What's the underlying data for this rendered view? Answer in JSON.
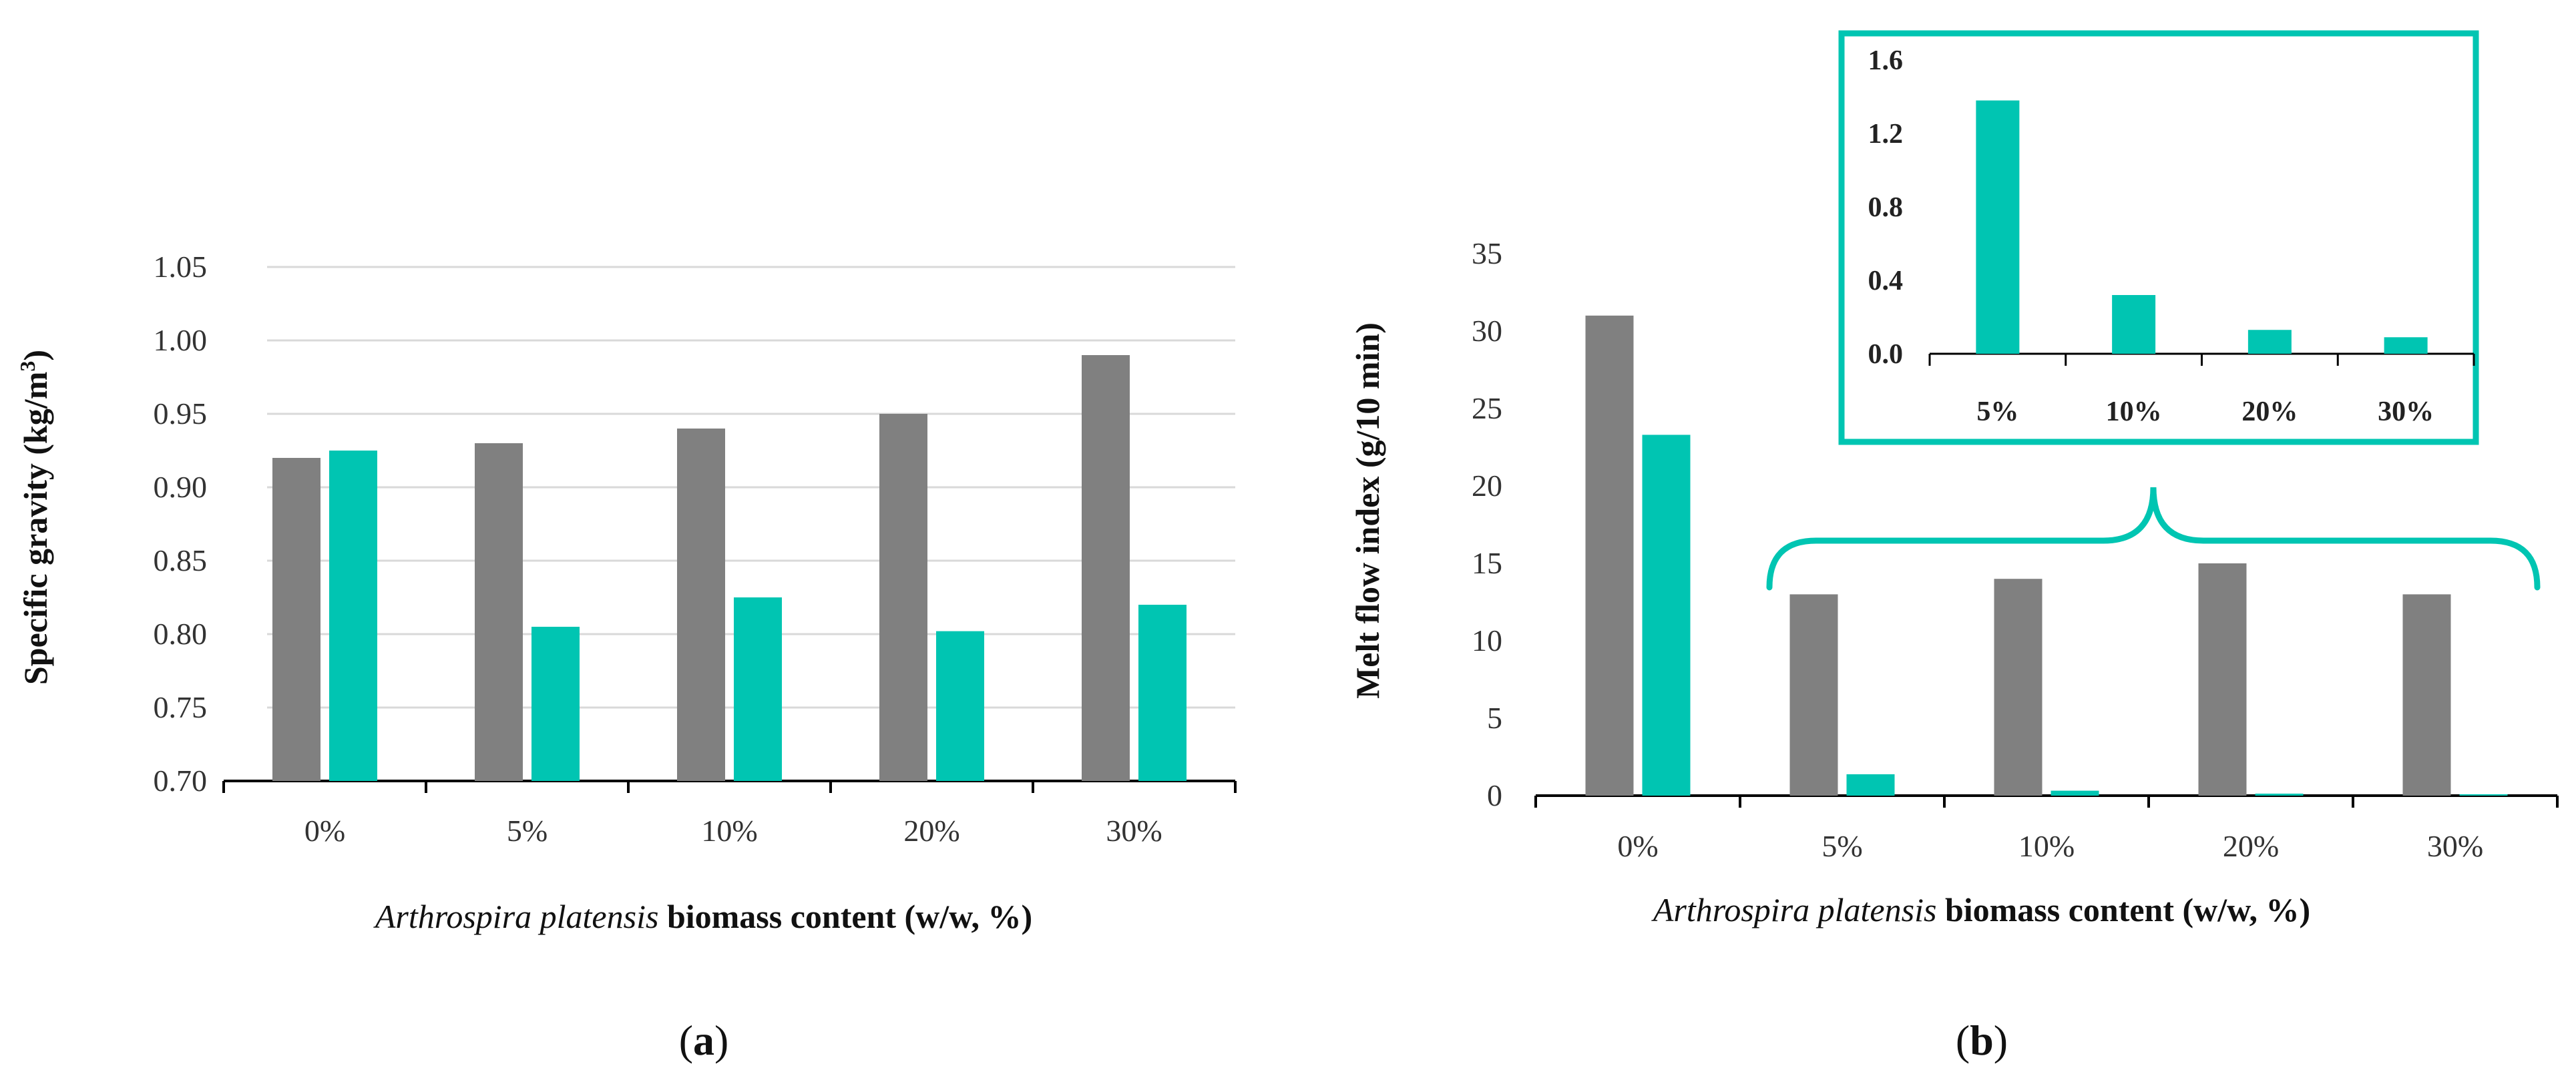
{
  "colors": {
    "series_gray": "#808080",
    "series_teal": "#00c5b2",
    "grid": "#d9d9d9",
    "axis": "#000000"
  },
  "panels": {
    "a": {
      "label_prefix": "(",
      "label_letter": "a",
      "label_suffix": ")"
    },
    "b": {
      "label_prefix": "(",
      "label_letter": "b",
      "label_suffix": ")"
    }
  },
  "chart_data": [
    {
      "id": "a",
      "type": "bar",
      "title": "",
      "categories": [
        "0%",
        "5%",
        "10%",
        "20%",
        "30%"
      ],
      "series": [
        {
          "name": "gray",
          "values": [
            0.92,
            0.93,
            0.94,
            0.95,
            0.99
          ]
        },
        {
          "name": "teal",
          "values": [
            0.925,
            0.805,
            0.825,
            0.802,
            0.82
          ]
        }
      ],
      "ylim": [
        0.7,
        1.05
      ],
      "yticks": [
        "0.70",
        "0.75",
        "0.80",
        "0.85",
        "0.90",
        "0.95",
        "1.00",
        "1.05"
      ],
      "ylabel_main": "Specific gravity (kg/m",
      "ylabel_sup": "3",
      "ylabel_end": ")",
      "xlabel_italic": "Arthrospira platensis",
      "xlabel_rest": " biomass content (w/w, %)",
      "grid": true
    },
    {
      "id": "b",
      "type": "bar",
      "title": "",
      "categories": [
        "0%",
        "5%",
        "10%",
        "20%",
        "30%"
      ],
      "series": [
        {
          "name": "gray",
          "values": [
            31,
            13,
            14,
            15,
            13
          ]
        },
        {
          "name": "teal",
          "values": [
            23.3,
            1.38,
            0.32,
            0.13,
            0.09
          ]
        }
      ],
      "ylim": [
        0,
        35
      ],
      "yticks": [
        "0",
        "5",
        "10",
        "15",
        "20",
        "25",
        "30",
        "35"
      ],
      "ylabel": "Melt flow index (g/10 min)",
      "xlabel_italic": "Arthrospira platensis",
      "xlabel_rest": " biomass content (w/w, %)",
      "grid": false
    },
    {
      "id": "b-inset",
      "type": "bar",
      "title": "",
      "categories": [
        "5%",
        "10%",
        "20%",
        "30%"
      ],
      "values": [
        1.38,
        0.32,
        0.13,
        0.09
      ],
      "ylim": [
        0.0,
        1.6
      ],
      "yticks": [
        "0.0",
        "0.4",
        "0.8",
        "1.2",
        "1.6"
      ],
      "grid": false
    }
  ]
}
